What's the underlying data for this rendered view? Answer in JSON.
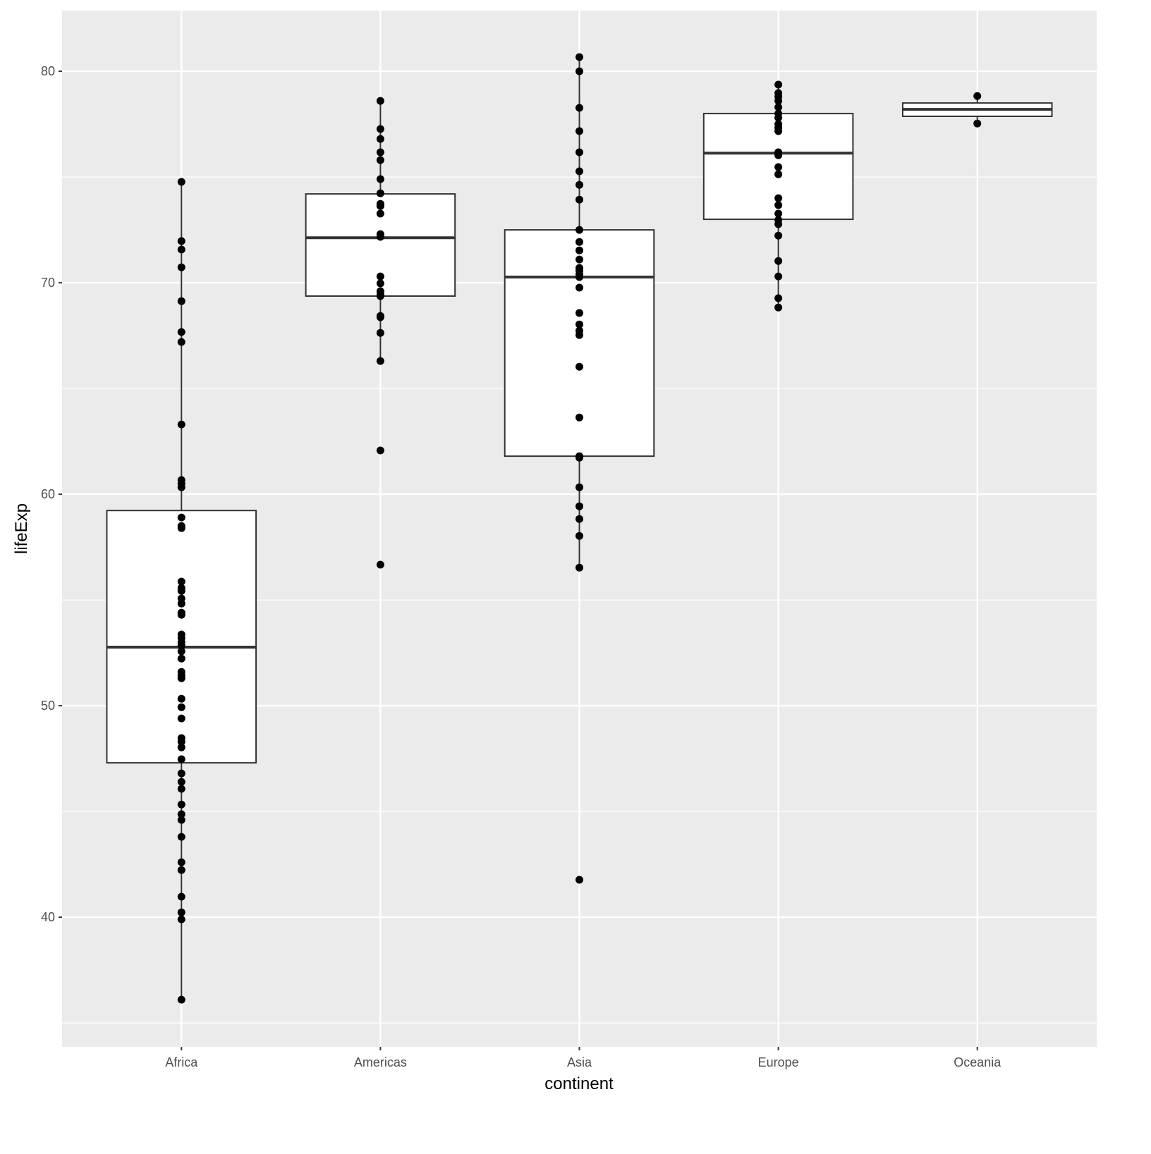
{
  "chart_data": {
    "type": "boxplot",
    "xlabel": "continent",
    "ylabel": "lifeExp",
    "ylim": [
      33.87,
      82.87
    ],
    "yticks": [
      40,
      50,
      60,
      70,
      80
    ],
    "grid": true,
    "legend": "none",
    "colors": {
      "panel": "#ebebeb",
      "grid": "#ffffff",
      "box_fill": "#ffffff",
      "box_stroke": "#333333",
      "point": "#000000",
      "tick_label": "#4d4d4d"
    },
    "categories": [
      "Africa",
      "Americas",
      "Asia",
      "Europe",
      "Oceania"
    ],
    "boxes": [
      {
        "category": "Africa",
        "lower_whisker": 36.1,
        "q1": 47.3,
        "median": 52.77,
        "q3": 59.23,
        "upper_whisker": 74.77,
        "points": [
          74.77,
          71.97,
          71.57,
          70.73,
          69.13,
          67.67,
          67.2,
          63.3,
          60.67,
          60.5,
          60.33,
          58.9,
          58.5,
          58.4,
          55.87,
          55.57,
          55.43,
          55.07,
          54.83,
          54.4,
          54.3,
          53.37,
          53.2,
          53.0,
          52.83,
          52.57,
          52.23,
          51.6,
          51.43,
          51.3,
          50.33,
          49.93,
          49.4,
          48.47,
          48.3,
          48.03,
          47.47,
          46.8,
          46.4,
          46.07,
          45.33,
          44.87,
          44.6,
          43.8,
          42.6,
          42.23,
          40.97,
          40.23,
          39.9,
          36.1
        ]
      },
      {
        "category": "Americas",
        "lower_whisker": 66.3,
        "q1": 69.37,
        "median": 72.13,
        "q3": 74.2,
        "upper_whisker": 78.6,
        "points": [
          78.6,
          77.27,
          76.8,
          76.17,
          75.8,
          74.9,
          74.23,
          73.73,
          73.63,
          73.27,
          72.3,
          72.17,
          70.3,
          69.97,
          69.6,
          69.43,
          69.37,
          68.43,
          68.37,
          67.63,
          66.3,
          62.07,
          56.67
        ]
      },
      {
        "category": "Asia",
        "lower_whisker": 56.53,
        "q1": 61.8,
        "median": 70.27,
        "q3": 72.5,
        "upper_whisker": 80.67,
        "points": [
          80.67,
          80.0,
          78.27,
          77.17,
          76.17,
          75.27,
          74.63,
          73.93,
          72.5,
          71.93,
          71.53,
          71.1,
          70.7,
          70.57,
          70.4,
          70.27,
          69.77,
          68.57,
          68.03,
          67.73,
          67.53,
          66.03,
          63.63,
          61.8,
          61.73,
          60.33,
          59.43,
          58.83,
          58.03,
          56.53,
          41.77
        ]
      },
      {
        "category": "Europe",
        "lower_whisker": 68.83,
        "q1": 73.0,
        "median": 76.13,
        "q3": 78.0,
        "upper_whisker": 79.37,
        "points": [
          79.37,
          78.97,
          78.8,
          78.6,
          78.3,
          78.0,
          77.8,
          77.5,
          77.33,
          77.17,
          76.17,
          76.03,
          75.47,
          75.13,
          74.0,
          73.67,
          73.27,
          72.97,
          72.77,
          72.23,
          71.03,
          70.3,
          69.27,
          68.83
        ]
      },
      {
        "category": "Oceania",
        "lower_whisker": 77.53,
        "q1": 77.87,
        "median": 78.2,
        "q3": 78.5,
        "upper_whisker": 78.83,
        "points": [
          78.83,
          77.53
        ]
      }
    ]
  }
}
